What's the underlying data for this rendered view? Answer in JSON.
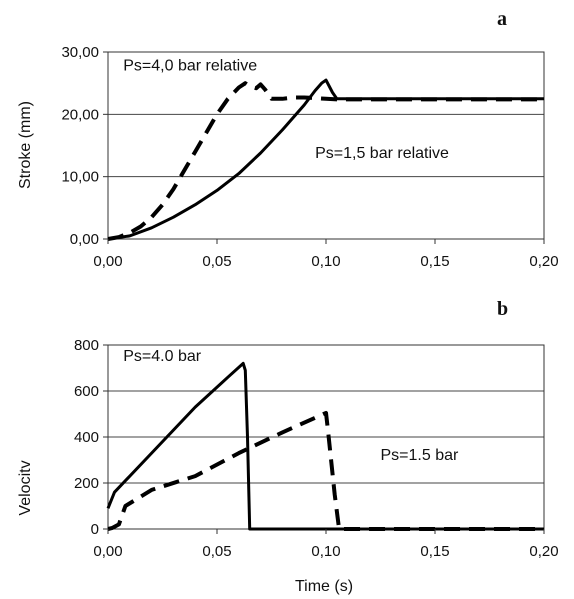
{
  "chart_data": [
    {
      "type": "line",
      "panel_label": "a",
      "title": "",
      "xlabel": "",
      "ylabel": "Stroke (mm)",
      "xlim": [
        0,
        0.2
      ],
      "ylim": [
        0,
        30
      ],
      "x_ticks": [
        "0,00",
        "0,05",
        "0,10",
        "0,15",
        "0,20"
      ],
      "x_tick_values": [
        0,
        0.05,
        0.1,
        0.15,
        0.2
      ],
      "y_ticks": [
        "0,00",
        "10,00",
        "20,00",
        "30,00"
      ],
      "y_tick_values": [
        0,
        10,
        20,
        30
      ],
      "grid": "horizontal",
      "series": [
        {
          "style": "dashed",
          "x": [
            0,
            0.005,
            0.01,
            0.015,
            0.02,
            0.025,
            0.03,
            0.035,
            0.04,
            0.045,
            0.05,
            0.055,
            0.06,
            0.063,
            0.065,
            0.068,
            0.07,
            0.072,
            0.075,
            0.08,
            0.085,
            0.09,
            0.095,
            0.1,
            0.105,
            0.11,
            0.15,
            0.2
          ],
          "y": [
            0,
            0.3,
            1.0,
            2.0,
            3.5,
            5.5,
            8.0,
            11.0,
            14.0,
            17.0,
            20.0,
            22.5,
            24.3,
            25.0,
            24.5,
            24.2,
            24.8,
            24.0,
            22.5,
            22.5,
            22.7,
            22.7,
            22.6,
            22.5,
            22.4,
            22.4,
            22.4,
            22.4
          ]
        },
        {
          "style": "solid",
          "x": [
            0,
            0.01,
            0.02,
            0.03,
            0.04,
            0.05,
            0.06,
            0.07,
            0.08,
            0.09,
            0.095,
            0.098,
            0.1,
            0.103,
            0.105,
            0.15,
            0.2
          ],
          "y": [
            0,
            0.5,
            1.8,
            3.5,
            5.5,
            7.8,
            10.5,
            13.8,
            17.5,
            21.5,
            23.8,
            25.0,
            25.5,
            23.5,
            22.5,
            22.5,
            22.5
          ]
        }
      ],
      "annotations": [
        {
          "text": "Ps=4,0 bar relative",
          "x": 0.007,
          "y": 27.0
        },
        {
          "text": "Ps=1,5 bar relative",
          "x": 0.095,
          "y": 13.0
        }
      ]
    },
    {
      "type": "line",
      "panel_label": "b",
      "title": "",
      "xlabel": "Time (s)",
      "ylabel": "Velocitv",
      "xlim": [
        0,
        0.2
      ],
      "ylim": [
        0,
        800
      ],
      "x_ticks": [
        "0,00",
        "0,05",
        "0,10",
        "0,15",
        "0,20"
      ],
      "x_tick_values": [
        0,
        0.05,
        0.1,
        0.15,
        0.2
      ],
      "y_ticks": [
        "0",
        "200",
        "400",
        "600",
        "800"
      ],
      "y_tick_values": [
        0,
        200,
        400,
        600,
        800
      ],
      "grid": "horizontal",
      "series": [
        {
          "style": "solid",
          "x": [
            0,
            0.003,
            0.008,
            0.02,
            0.04,
            0.055,
            0.062,
            0.063,
            0.064,
            0.065,
            0.2
          ],
          "y": [
            90,
            160,
            210,
            330,
            530,
            660,
            720,
            690,
            400,
            0,
            0
          ]
        },
        {
          "style": "dashed",
          "x": [
            0,
            0.002,
            0.005,
            0.008,
            0.02,
            0.04,
            0.06,
            0.08,
            0.1,
            0.101,
            0.104,
            0.106,
            0.2
          ],
          "y": [
            0,
            5,
            20,
            100,
            170,
            230,
            330,
            420,
            505,
            420,
            150,
            0,
            0
          ]
        }
      ],
      "annotations": [
        {
          "text": "Ps=4.0 bar",
          "x": 0.007,
          "y": 730
        },
        {
          "text": "Ps=1.5 bar",
          "x": 0.125,
          "y": 300
        }
      ]
    }
  ]
}
